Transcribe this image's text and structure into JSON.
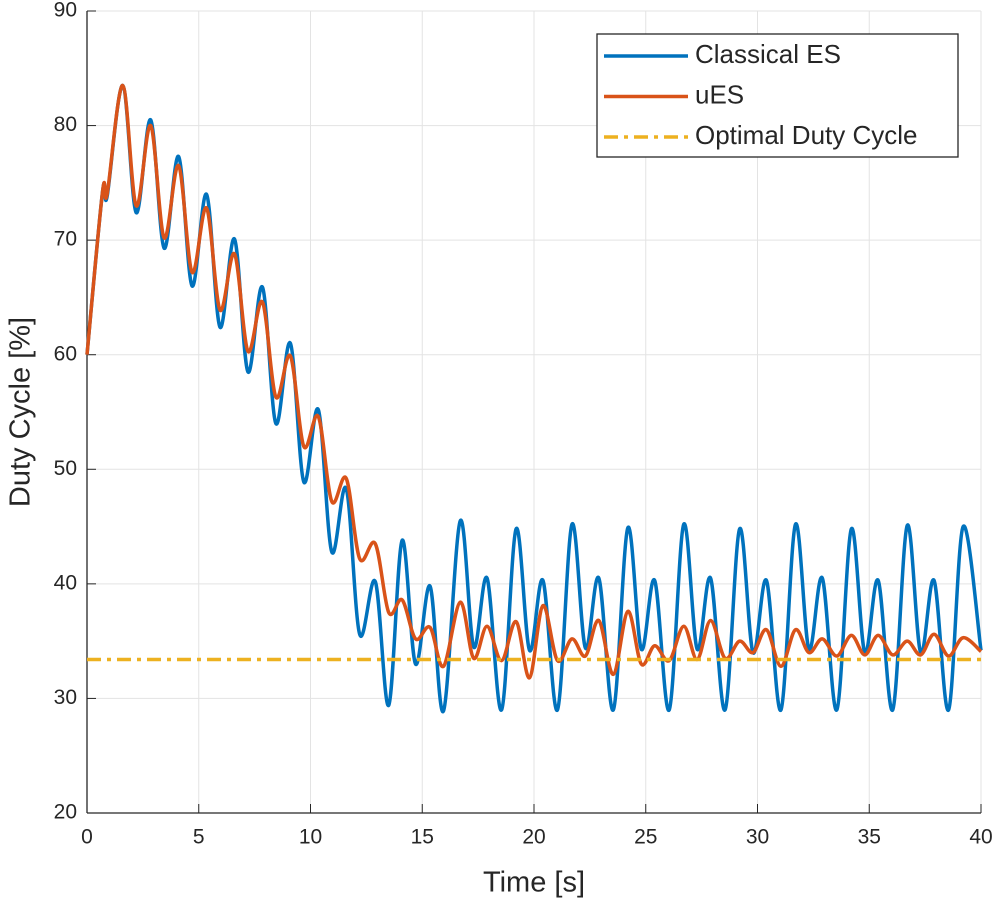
{
  "chart_data": {
    "type": "line",
    "xlabel": "Time [s]",
    "ylabel": "Duty Cycle [%]",
    "x": [
      0,
      0.7,
      0.9,
      1.6,
      2.2,
      2.85,
      3.45,
      4.1,
      4.7,
      5.35,
      5.95,
      6.6,
      7.2,
      7.85,
      8.45,
      9.1,
      9.7,
      10.35,
      10.95,
      11.6,
      12.2,
      12.9,
      13.5,
      14.1,
      14.7,
      15.35,
      15.95,
      16.7,
      17.3,
      17.9,
      18.55,
      19.2,
      19.8,
      20.4,
      21.05,
      21.7,
      22.3,
      22.9,
      23.55,
      24.2,
      24.8,
      25.4,
      26.05,
      26.7,
      27.3,
      27.9,
      28.55,
      29.2,
      29.8,
      30.4,
      31.05,
      31.7,
      32.3,
      32.9,
      33.55,
      34.2,
      34.8,
      35.4,
      36.05,
      36.7,
      37.3,
      37.9,
      38.55,
      39.2,
      40
    ],
    "series": [
      {
        "name": "Classical ES",
        "color": "#0072BD",
        "values": [
          60,
          74.3,
          73.8,
          83.5,
          72.4,
          80.5,
          69.3,
          77.3,
          66,
          74,
          62.4,
          70.1,
          58.5,
          65.9,
          54,
          61,
          48.9,
          55.2,
          42.8,
          48.3,
          35.6,
          40.2,
          29.4,
          43.8,
          33,
          39.8,
          28.9,
          45.5,
          34.5,
          40.5,
          29,
          44.8,
          34.2,
          40.3,
          29,
          45.2,
          34.4,
          40.5,
          29,
          44.9,
          34.3,
          40.3,
          29,
          45.2,
          34.3,
          40.5,
          29,
          44.8,
          34,
          40.3,
          29,
          45.2,
          34.3,
          40.5,
          29,
          44.8,
          34,
          40.3,
          29,
          45.1,
          34,
          40.3,
          29,
          45,
          34.2
        ]
      },
      {
        "name": "uES",
        "color": "#D95319",
        "values": [
          60,
          74.3,
          74,
          83.5,
          73,
          80,
          70.2,
          76.5,
          67.2,
          72.8,
          63.9,
          68.8,
          60.3,
          64.6,
          56.3,
          59.9,
          52,
          54.6,
          47.2,
          49.2,
          42.2,
          43.5,
          37.5,
          38.6,
          35.2,
          36.2,
          32.8,
          38.4,
          33.5,
          36.3,
          33.3,
          36.7,
          31.8,
          38.1,
          33.3,
          35.2,
          33.7,
          36.8,
          32.1,
          37.6,
          33,
          34.6,
          33.3,
          36.3,
          33.4,
          36.8,
          33.5,
          35,
          34,
          36,
          32.8,
          36,
          34,
          35.2,
          33.7,
          35.5,
          33.8,
          35.5,
          33.8,
          35,
          33.8,
          35.6,
          33.7,
          35.3,
          34.1
        ]
      }
    ],
    "reference_line": {
      "name": "Optimal Duty Cycle",
      "color": "#EDB120",
      "value": 33.4,
      "style": "dashdot"
    },
    "xlim": [
      0,
      40
    ],
    "xticks": [
      0,
      5,
      10,
      15,
      20,
      25,
      30,
      35,
      40
    ],
    "ylim": [
      20,
      90
    ],
    "yticks": [
      20,
      30,
      40,
      50,
      60,
      70,
      80,
      90
    ],
    "grid": true,
    "legend": "northeast"
  }
}
